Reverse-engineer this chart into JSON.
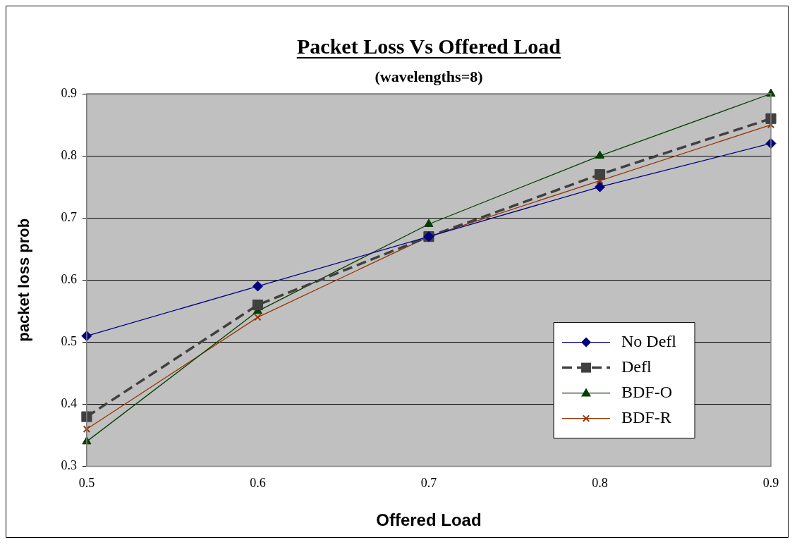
{
  "chart_data": {
    "type": "line",
    "title": "Packet Loss Vs Offered Load",
    "subtitle": "(wavelengths=8)",
    "xlabel": "Offered Load",
    "ylabel": "packet loss prob",
    "x": [
      0.5,
      0.6,
      0.7,
      0.8,
      0.9
    ],
    "xlim": [
      0.5,
      0.9
    ],
    "xticks": [
      0.5,
      0.6,
      0.7,
      0.8,
      0.9
    ],
    "ylim": [
      0.3,
      0.9
    ],
    "yticks": [
      0.3,
      0.4,
      0.5,
      0.6,
      0.7,
      0.8,
      0.9
    ],
    "grid": "y",
    "legend": "bottom right",
    "series": [
      {
        "name": "No Defl",
        "color": "#000080",
        "values": [
          0.51,
          0.59,
          0.67,
          0.75,
          0.82
        ],
        "marker": "diamond",
        "line_style": "solid"
      },
      {
        "name": "Defl",
        "color": "#404040",
        "values": [
          0.38,
          0.56,
          0.67,
          0.77,
          0.86
        ],
        "marker": "square",
        "line_style": "dashed"
      },
      {
        "name": "BDF-O",
        "color": "#004000",
        "values": [
          0.34,
          0.55,
          0.69,
          0.8,
          0.9
        ],
        "marker": "triangle",
        "line_style": "solid"
      },
      {
        "name": "BDF-R",
        "color": "#993300",
        "values": [
          0.36,
          0.54,
          0.67,
          0.76,
          0.85
        ],
        "marker": "cross",
        "line_style": "solid"
      }
    ]
  }
}
